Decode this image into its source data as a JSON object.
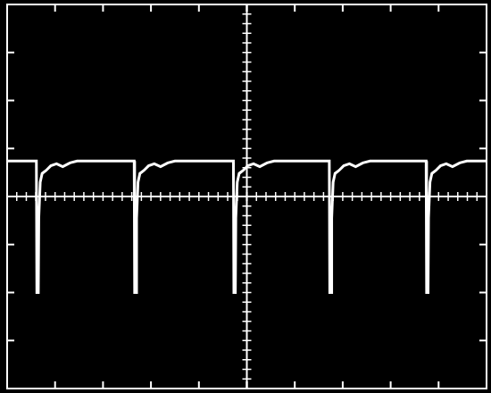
{
  "chart_data": {
    "type": "line",
    "x": [
      0,
      0.61,
      0.62,
      0.65,
      0.66,
      0.69,
      0.73,
      0.81,
      0.91,
      1.03,
      1.16,
      1.31,
      1.46,
      2.65,
      2.66,
      2.69,
      2.7,
      2.73,
      2.77,
      2.85,
      2.95,
      3.07,
      3.2,
      3.35,
      3.5,
      4.72,
      4.73,
      4.76,
      4.77,
      4.8,
      4.84,
      4.92,
      5.02,
      5.14,
      5.27,
      5.42,
      5.57,
      6.72,
      6.73,
      6.76,
      6.77,
      6.8,
      6.84,
      6.92,
      7.02,
      7.14,
      7.27,
      7.42,
      7.57,
      8.74,
      8.75,
      8.78,
      8.79,
      8.82,
      8.86,
      8.94,
      9.04,
      9.16,
      9.29,
      9.44,
      9.59,
      10
    ],
    "values": [
      0.74,
      0.74,
      -2.0,
      -2.0,
      -0.45,
      0.3,
      0.48,
      0.54,
      0.64,
      0.68,
      0.62,
      0.7,
      0.74,
      0.74,
      -2.0,
      -2.0,
      -0.45,
      0.3,
      0.48,
      0.54,
      0.64,
      0.68,
      0.62,
      0.7,
      0.74,
      0.74,
      -2.0,
      -2.0,
      -0.45,
      0.3,
      0.48,
      0.54,
      0.64,
      0.68,
      0.62,
      0.7,
      0.74,
      0.74,
      -2.0,
      -2.0,
      -0.45,
      0.3,
      0.48,
      0.54,
      0.64,
      0.68,
      0.62,
      0.7,
      0.74,
      0.74,
      -2.0,
      -2.0,
      -0.45,
      0.3,
      0.48,
      0.54,
      0.64,
      0.68,
      0.62,
      0.7,
      0.74,
      0.74
    ],
    "color": "#ffffff",
    "xlim": [
      0,
      10
    ],
    "xticks": [
      0,
      1,
      2,
      3,
      4,
      5,
      6,
      7,
      8,
      9,
      10
    ],
    "ylim": [
      -4,
      4
    ],
    "yticks": [
      -4,
      -3,
      -2,
      -1,
      0,
      1,
      2,
      3,
      4
    ],
    "grid": false,
    "tick_labels": false
  }
}
